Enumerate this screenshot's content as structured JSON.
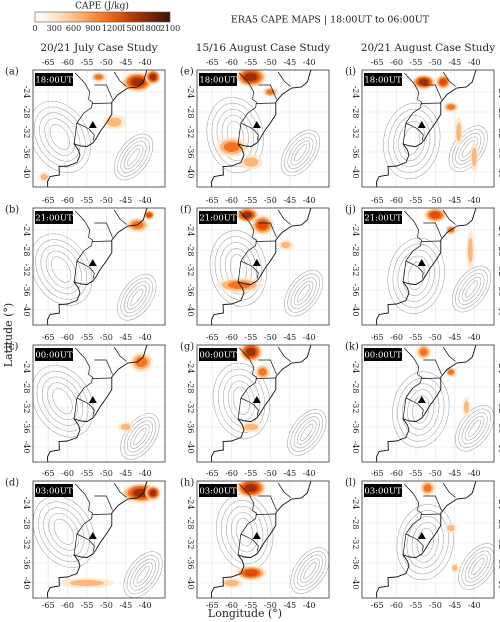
{
  "colorbar": {
    "label": "CAPE (J/kg)",
    "ticks": [
      0,
      300,
      600,
      900,
      1200,
      1500,
      1800,
      2100
    ]
  },
  "title": "ERA5 CAPE MAPS  |  18:00UT to 06:00UT",
  "columns": [
    {
      "title": "20/21 July Case Study",
      "panels": [
        {
          "letter": "(a)",
          "time": "18:00UT"
        },
        {
          "letter": "(b)",
          "time": "21:00UT"
        },
        {
          "letter": "(c)",
          "time": "00:00UT"
        },
        {
          "letter": "(d)",
          "time": "03:00UT"
        }
      ]
    },
    {
      "title": "15/16 August Case Study",
      "panels": [
        {
          "letter": "(e)",
          "time": "18:00UT"
        },
        {
          "letter": "(f)",
          "time": "21:00UT"
        },
        {
          "letter": "(g)",
          "time": "00:00UT"
        },
        {
          "letter": "(h)",
          "time": "03:00UT"
        }
      ]
    },
    {
      "title": "20/21 August Case Study",
      "panels": [
        {
          "letter": "(i)",
          "time": "18:00UT"
        },
        {
          "letter": "(j)",
          "time": "21:00UT"
        },
        {
          "letter": "(k)",
          "time": "00:00UT"
        },
        {
          "letter": "(l)",
          "time": "03:00UT"
        }
      ]
    }
  ],
  "longitude_ticks": [
    -65,
    -60,
    -55,
    -50,
    -45,
    -40
  ],
  "latitude_ticks": [
    -24,
    -28,
    -32,
    -36,
    -40
  ],
  "xlabel": "Longitude (°)",
  "ylabel": "Latitude (°)"
}
